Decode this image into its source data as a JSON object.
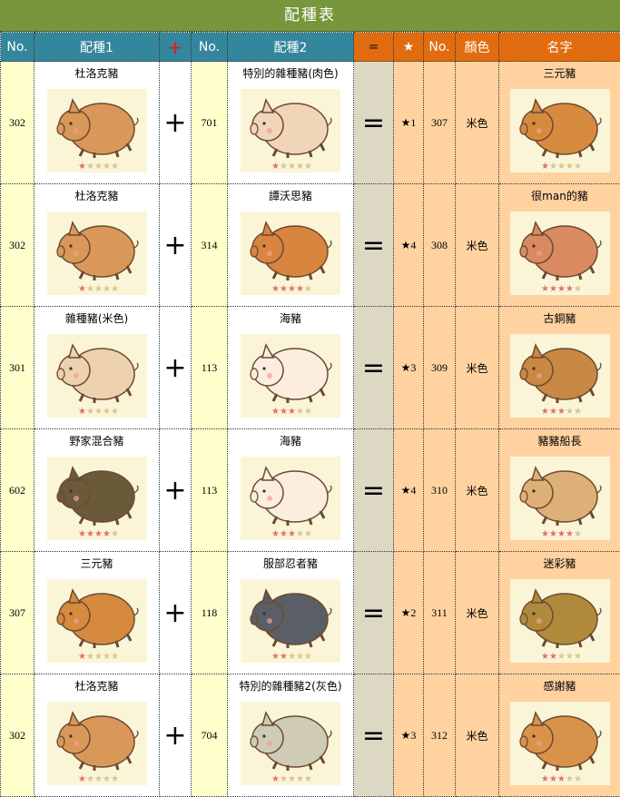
{
  "title": "配種表",
  "headers": {
    "no1": "No.",
    "parent1": "配種1",
    "plus": "+",
    "no2": "No.",
    "parent2": "配種2",
    "equals": "=",
    "star": "★",
    "no3": "No.",
    "color": "顏色",
    "name": "名字"
  },
  "colors": {
    "title_bg": "#78963b",
    "header_blue": "#33869b",
    "header_orange": "#e06c0f",
    "no_col": "#ffffcc",
    "result_col": "#ffd2a0",
    "equals_col": "#ddd8c4"
  },
  "rows": [
    {
      "p1_no": "302",
      "p1": "杜洛克豬",
      "p1_stars": 1,
      "p1_color": "#d9985a",
      "p2_no": "701",
      "p2": "特別的雜種豬(肉色)",
      "p2_stars": 1,
      "p2_color": "#f0d5b8",
      "star": "★1",
      "no": "307",
      "color": "米色",
      "name": "三元豬",
      "c_stars": 1,
      "c_color": "#d58a3e"
    },
    {
      "p1_no": "302",
      "p1": "杜洛克豬",
      "p1_stars": 1,
      "p1_color": "#d9985a",
      "p2_no": "314",
      "p2": "譚沃思豬",
      "p2_stars": 4,
      "p2_color": "#d9843f",
      "star": "★4",
      "no": "308",
      "color": "米色",
      "name": "很man的豬",
      "c_stars": 4,
      "c_color": "#d98a60"
    },
    {
      "p1_no": "301",
      "p1": "雜種豬(米色)",
      "p1_stars": 1,
      "p1_color": "#eed2b0",
      "p2_no": "113",
      "p2": "海豬",
      "p2_stars": 3,
      "p2_color": "#fbeee0",
      "star": "★3",
      "no": "309",
      "color": "米色",
      "name": "古銅豬",
      "c_stars": 3,
      "c_color": "#c98845"
    },
    {
      "p1_no": "602",
      "p1": "野家混合豬",
      "p1_stars": 4,
      "p1_color": "#6b5a3a",
      "p2_no": "113",
      "p2": "海豬",
      "p2_stars": 3,
      "p2_color": "#fbeee0",
      "star": "★4",
      "no": "310",
      "color": "米色",
      "name": "豬豬船長",
      "c_stars": 4,
      "c_color": "#dcb077"
    },
    {
      "p1_no": "307",
      "p1": "三元豬",
      "p1_stars": 1,
      "p1_color": "#d58a3e",
      "p2_no": "118",
      "p2": "服部忍者豬",
      "p2_stars": 2,
      "p2_color": "#5a5e66",
      "star": "★2",
      "no": "311",
      "color": "米色",
      "name": "迷彩豬",
      "c_stars": 2,
      "c_color": "#b08a3a"
    },
    {
      "p1_no": "302",
      "p1": "杜洛克豬",
      "p1_stars": 1,
      "p1_color": "#d9985a",
      "p2_no": "704",
      "p2": "特別的雜種豬2(灰色)",
      "p2_stars": 1,
      "p2_color": "#d0cbb5",
      "star": "★3",
      "no": "312",
      "color": "米色",
      "name": "感謝豬",
      "c_stars": 3,
      "c_color": "#d9924a"
    }
  ],
  "symbols": {
    "plus": "+",
    "equals": "="
  }
}
